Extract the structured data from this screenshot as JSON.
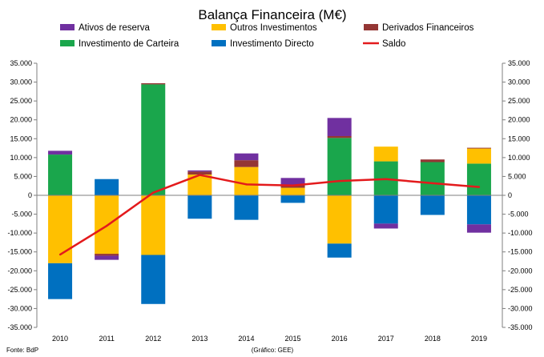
{
  "chart_data": {
    "type": "bar",
    "stacked": true,
    "title": "Balança Financeira (M€)",
    "categories": [
      "2010",
      "2011",
      "2012",
      "2013",
      "2014",
      "2015",
      "2016",
      "2017",
      "2018",
      "2019"
    ],
    "ylim": [
      -35000,
      35000
    ],
    "ytick_step": 5000,
    "yticks": [
      "-35.000",
      "-30.000",
      "-25.000",
      "-20.000",
      "-15.000",
      "-10.000",
      "-5.000",
      "0",
      "5.000",
      "10.000",
      "15.000",
      "20.000",
      "25.000",
      "30.000",
      "35.000"
    ],
    "series": [
      {
        "key": "carteira",
        "name": "Investimento de Carteira",
        "color": "#1aa64c",
        "values": [
          10800,
          0,
          29400,
          0,
          0,
          0,
          15200,
          9000,
          8800,
          8400
        ]
      },
      {
        "key": "outros",
        "name": "Outros Investimentos",
        "color": "#ffc000",
        "values": [
          -18000,
          -15500,
          -15800,
          5500,
          7500,
          2000,
          -12800,
          3900,
          0,
          4000
        ]
      },
      {
        "key": "directo",
        "name": "Investimento Directo",
        "color": "#0070c0",
        "values": [
          -9500,
          4300,
          -13000,
          -6200,
          -6500,
          -2000,
          -3700,
          -7500,
          -5200,
          -7700
        ]
      },
      {
        "key": "derivados",
        "name": "Derivados Financeiros",
        "color": "#943634",
        "values": [
          0,
          -500,
          300,
          800,
          1800,
          800,
          500,
          0,
          700,
          200
        ]
      },
      {
        "key": "reserva",
        "name": "Ativos de reserva",
        "color": "#7030a0",
        "values": [
          1000,
          -1100,
          0,
          300,
          1800,
          1800,
          4800,
          -1300,
          0,
          -2200
        ]
      },
      {
        "key": "saldo",
        "name": "Saldo",
        "type": "line",
        "color": "#e31a1c",
        "values": [
          -15700,
          -8100,
          700,
          5400,
          2900,
          2600,
          3800,
          4300,
          3200,
          2200
        ]
      }
    ],
    "legend_order": [
      "reserva",
      "outros",
      "derivados",
      "carteira",
      "directo",
      "saldo"
    ],
    "source_left": "Fonte: BdP",
    "source_center": "(Gráfico: GEE)"
  }
}
